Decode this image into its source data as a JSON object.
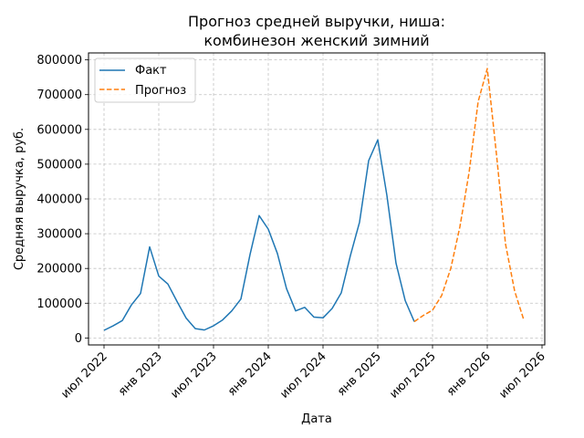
{
  "chart_data": {
    "type": "line",
    "title_lines": [
      "Прогноз средней выручки, ниша:",
      "комбинезон женский зимний"
    ],
    "xlabel": "Дата",
    "ylabel": "Средняя выручка, руб.",
    "ylim": [
      -20000,
      820000
    ],
    "yticks": [
      0,
      100000,
      200000,
      300000,
      400000,
      500000,
      600000,
      700000,
      800000
    ],
    "ytick_labels": [
      "0",
      "100000",
      "200000",
      "300000",
      "400000",
      "500000",
      "600000",
      "700000",
      "800000"
    ],
    "xlim": [
      -1.7,
      48.3
    ],
    "xticks": [
      0,
      6,
      12,
      18,
      24,
      30,
      36,
      42,
      48
    ],
    "xtick_labels": [
      "июл 2022",
      "янв 2023",
      "июл 2023",
      "янв 2024",
      "июл 2024",
      "янв 2025",
      "июл 2025",
      "янв 2026",
      "июл 2026"
    ],
    "grid": true,
    "legend_position": "top-left",
    "series": [
      {
        "name": "Факт",
        "color": "#1f77b4",
        "style": "solid",
        "x": [
          0,
          1,
          2,
          3,
          4,
          5,
          6,
          7,
          8,
          9,
          10,
          11,
          12,
          13,
          14,
          15,
          16,
          17,
          18,
          19,
          20,
          21,
          22,
          23,
          24,
          25,
          26,
          27,
          28,
          29,
          30,
          31,
          32,
          33,
          34
        ],
        "values": [
          22000,
          35000,
          50000,
          95000,
          128000,
          262000,
          178000,
          155000,
          105000,
          57000,
          27000,
          23000,
          35000,
          52000,
          78000,
          112000,
          240000,
          352000,
          313000,
          243000,
          142000,
          78000,
          88000,
          60000,
          58000,
          85000,
          130000,
          237000,
          333000,
          510000,
          570000,
          410000,
          215000,
          108000,
          47000
        ]
      },
      {
        "name": "Прогноз",
        "color": "#ff7f0e",
        "style": "dashed",
        "x": [
          34,
          35,
          36,
          37,
          38,
          39,
          40,
          41,
          42,
          43,
          44,
          45,
          46
        ],
        "values": [
          47000,
          65000,
          80000,
          122000,
          200000,
          320000,
          475000,
          680000,
          775000,
          530000,
          270000,
          135000,
          52000
        ]
      }
    ]
  }
}
